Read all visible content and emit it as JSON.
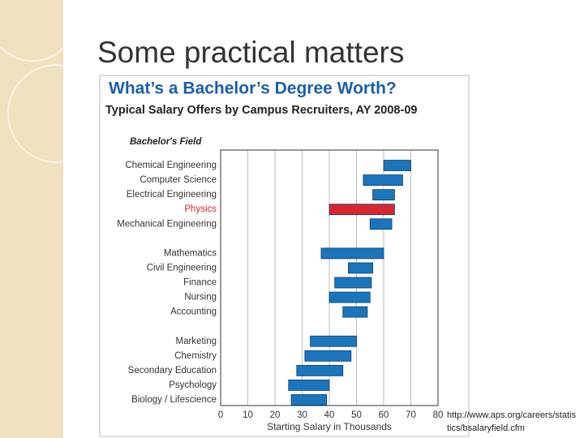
{
  "slide": {
    "title": "Some practical matters",
    "source": "http://www.aps.org/careers/statistics/bsalaryfield.cfm"
  },
  "chart_data": {
    "type": "range-bar",
    "title": "What’s a Bachelor’s Degree Worth?",
    "subtitle": "Typical Salary Offers by Campus Recruiters, AY 2008-09",
    "y_label": "Bachelor's Field",
    "x_label": "Starting Salary in Thousands",
    "categories": [
      "Chemical Engineering",
      "Computer Science",
      "Electrical Engineering",
      "Physics",
      "Mechanical Engineering",
      null,
      "Mathematics",
      "Civil Engineering",
      "Finance",
      "Nursing",
      "Accounting",
      null,
      "Marketing",
      "Chemistry",
      "Secondary Education",
      "Psychology",
      "Biology / Lifescience"
    ],
    "low": [
      60,
      52.5,
      56,
      40,
      55,
      null,
      37,
      47,
      42,
      40,
      45,
      null,
      33,
      31,
      28,
      25,
      26
    ],
    "high": [
      70,
      67,
      64,
      64,
      63,
      null,
      60,
      56,
      55.5,
      55,
      54,
      null,
      50,
      48,
      45,
      40,
      39
    ],
    "color": "#1b75bc",
    "colors": [
      "#1b75bc",
      "#1b75bc",
      "#1b75bc",
      "#d8262e",
      "#1b75bc",
      null,
      "#1b75bc",
      "#1b75bc",
      "#1b75bc",
      "#1b75bc",
      "#1b75bc",
      null,
      "#1b75bc",
      "#1b75bc",
      "#1b75bc",
      "#1b75bc",
      "#1b75bc"
    ],
    "xlim": [
      0,
      80
    ],
    "xticks": [
      0,
      10,
      20,
      30,
      40,
      50,
      60,
      70,
      80
    ],
    "grid": true
  }
}
